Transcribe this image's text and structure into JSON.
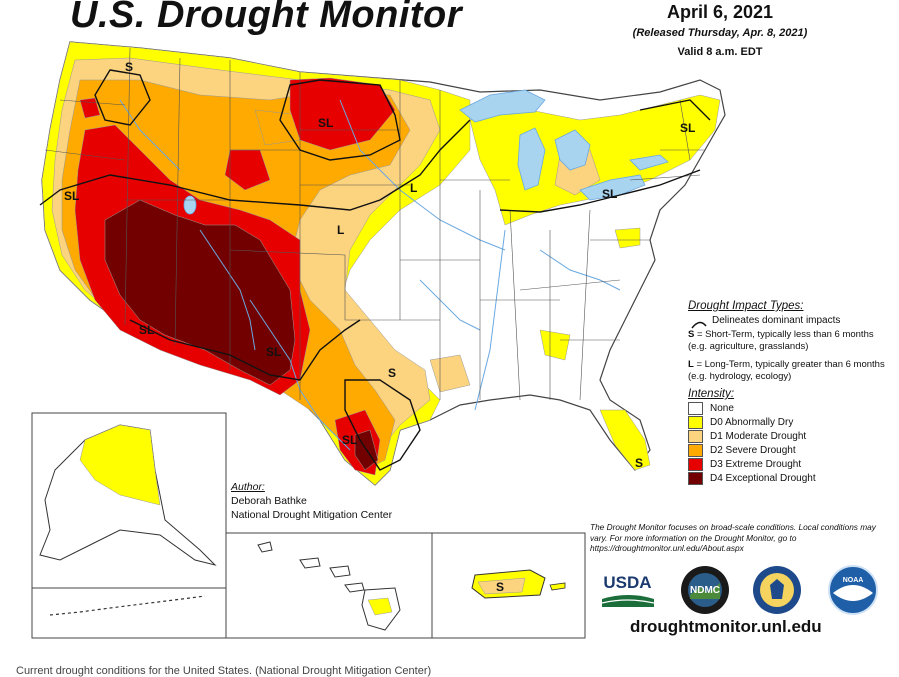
{
  "header": {
    "title": "U.S. Drought Monitor",
    "date": "April 6, 2021",
    "released": "(Released Thursday, Apr. 8, 2021)",
    "valid": "Valid 8 a.m. EDT"
  },
  "impact_types": {
    "heading": "Drought Impact Types:",
    "delineates": "Delineates dominant impacts",
    "short_term_key": "S",
    "short_term": " = Short-Term, typically less than 6 months (e.g. agriculture, grasslands)",
    "long_term_key": "L",
    "long_term": " = Long-Term, typically greater than 6 months (e.g. hydrology, ecology)"
  },
  "intensity": {
    "heading": "Intensity:",
    "levels": [
      {
        "label": "None",
        "color": "#ffffff"
      },
      {
        "label": "D0 Abnormally Dry",
        "color": "#ffff00"
      },
      {
        "label": "D1 Moderate Drought",
        "color": "#fcd37f"
      },
      {
        "label": "D2 Severe Drought",
        "color": "#ffaa00"
      },
      {
        "label": "D3 Extreme Drought",
        "color": "#e60000"
      },
      {
        "label": "D4 Exceptional Drought",
        "color": "#730000"
      }
    ]
  },
  "author": {
    "heading": "Author:",
    "name": "Deborah Bathke",
    "org": "National Drought Mitigation Center"
  },
  "note": "The Drought Monitor focuses on broad-scale conditions. Local conditions may vary. For more information on the Drought Monitor, go to https://droughtmonitor.unl.edu/About.aspx",
  "url": "droughtmonitor.unl.edu",
  "caption": "Current drought conditions for the United States. (National Drought Mitigation Center)",
  "logos": {
    "usda": "USDA",
    "ndmc": "NDMC",
    "noaa": "NOAA"
  },
  "map_labels": {
    "sl": "SL",
    "s": "S",
    "l": "L"
  },
  "colors": {
    "water": "#a8d4f0",
    "rivers": "#6aa8e0",
    "borders": "#333333"
  }
}
